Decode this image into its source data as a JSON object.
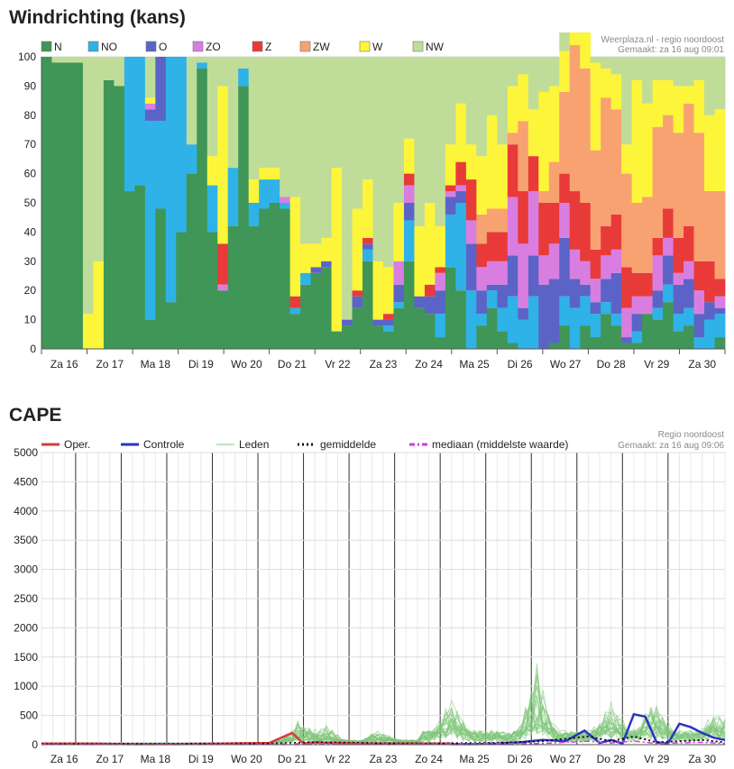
{
  "wind": {
    "title": "Windrichting (kans)",
    "source": "Weerplaza.nl - regio noordoost",
    "made": "Gemaakt: za 16 aug 09:01"
  },
  "cape": {
    "title": "CAPE",
    "source": "Regio noordoost",
    "made": "Gemaakt: za 16 aug 09:06"
  },
  "chart_data": [
    {
      "type": "bar",
      "stacked": true,
      "title": "Windrichting (kans)",
      "ylim": [
        0,
        100
      ],
      "yticks": [
        0,
        10,
        20,
        30,
        40,
        50,
        60,
        70,
        80,
        90,
        100
      ],
      "grid": true,
      "legend_position": "top-left",
      "day_labels": [
        "Za 16",
        "Zo 17",
        "Ma 18",
        "Di 19",
        "Wo 20",
        "Do 21",
        "Vr 22",
        "Za 23",
        "Zo 24",
        "Ma 25",
        "Di 26",
        "Wo 27",
        "Do 28",
        "Vr 29",
        "Za 30"
      ],
      "series_order": [
        "N",
        "NO",
        "O",
        "ZO",
        "Z",
        "ZW",
        "W",
        "NW"
      ],
      "colors": {
        "N": "#3f9656",
        "NO": "#2eb2e8",
        "O": "#5b64c6",
        "ZO": "#d97ee1",
        "Z": "#e93a3a",
        "ZW": "#f8a271",
        "W": "#fcf53a",
        "NW": "#c0dc99"
      },
      "bars": [
        [
          100,
          0,
          0,
          0,
          0,
          0,
          0,
          0
        ],
        [
          98,
          0,
          0,
          0,
          0,
          0,
          0,
          2
        ],
        [
          98,
          0,
          0,
          0,
          0,
          0,
          0,
          2
        ],
        [
          98,
          0,
          0,
          0,
          0,
          0,
          0,
          2
        ],
        [
          0,
          0,
          0,
          0,
          0,
          0,
          12,
          88
        ],
        [
          0,
          0,
          0,
          0,
          0,
          0,
          30,
          70
        ],
        [
          92,
          0,
          0,
          0,
          0,
          0,
          0,
          8
        ],
        [
          90,
          0,
          0,
          0,
          0,
          0,
          0,
          10
        ],
        [
          54,
          46,
          0,
          0,
          0,
          0,
          0,
          0
        ],
        [
          56,
          44,
          0,
          0,
          0,
          0,
          0,
          0
        ],
        [
          10,
          68,
          4,
          2,
          0,
          0,
          2,
          14
        ],
        [
          48,
          30,
          22,
          0,
          0,
          0,
          0,
          0
        ],
        [
          16,
          84,
          0,
          0,
          0,
          0,
          0,
          0
        ],
        [
          40,
          60,
          0,
          0,
          0,
          0,
          0,
          0
        ],
        [
          60,
          10,
          0,
          0,
          0,
          0,
          0,
          30
        ],
        [
          96,
          2,
          0,
          0,
          0,
          0,
          0,
          2
        ],
        [
          40,
          16,
          0,
          0,
          0,
          0,
          10,
          34
        ],
        [
          20,
          0,
          0,
          2,
          14,
          0,
          54,
          10
        ],
        [
          42,
          20,
          0,
          0,
          0,
          0,
          0,
          38
        ],
        [
          90,
          6,
          0,
          0,
          0,
          0,
          0,
          4
        ],
        [
          42,
          8,
          0,
          0,
          0,
          0,
          8,
          42
        ],
        [
          48,
          10,
          0,
          0,
          0,
          0,
          4,
          38
        ],
        [
          50,
          8,
          0,
          0,
          0,
          0,
          4,
          38
        ],
        [
          48,
          2,
          0,
          2,
          0,
          0,
          0,
          48
        ],
        [
          12,
          2,
          0,
          0,
          4,
          0,
          34,
          48
        ],
        [
          22,
          4,
          0,
          0,
          0,
          0,
          10,
          64
        ],
        [
          26,
          0,
          2,
          0,
          0,
          0,
          8,
          64
        ],
        [
          28,
          0,
          2,
          0,
          0,
          0,
          8,
          62
        ],
        [
          6,
          0,
          0,
          0,
          0,
          0,
          56,
          38
        ],
        [
          8,
          0,
          2,
          0,
          0,
          0,
          0,
          90
        ],
        [
          14,
          0,
          4,
          0,
          2,
          0,
          28,
          52
        ],
        [
          30,
          4,
          2,
          0,
          2,
          0,
          20,
          42
        ],
        [
          8,
          0,
          2,
          0,
          0,
          0,
          20,
          70
        ],
        [
          6,
          2,
          2,
          0,
          2,
          0,
          16,
          72
        ],
        [
          14,
          2,
          6,
          8,
          0,
          0,
          20,
          50
        ],
        [
          30,
          14,
          6,
          6,
          4,
          0,
          12,
          28
        ],
        [
          14,
          0,
          4,
          0,
          0,
          0,
          24,
          58
        ],
        [
          12,
          0,
          6,
          0,
          4,
          0,
          28,
          50
        ],
        [
          4,
          8,
          8,
          6,
          2,
          0,
          14,
          58
        ],
        [
          28,
          18,
          6,
          2,
          2,
          0,
          14,
          30
        ],
        [
          20,
          30,
          4,
          2,
          8,
          0,
          20,
          16
        ],
        [
          0,
          20,
          16,
          8,
          14,
          0,
          12,
          30
        ],
        [
          8,
          4,
          8,
          8,
          8,
          10,
          20,
          34
        ],
        [
          14,
          6,
          2,
          8,
          10,
          8,
          32,
          20
        ],
        [
          6,
          8,
          8,
          8,
          10,
          8,
          22,
          30
        ],
        [
          2,
          16,
          14,
          20,
          18,
          4,
          16,
          10
        ],
        [
          0,
          10,
          4,
          22,
          18,
          24,
          16,
          6
        ],
        [
          0,
          18,
          14,
          22,
          12,
          0,
          16,
          18
        ],
        [
          0,
          0,
          22,
          10,
          18,
          4,
          34,
          12
        ],
        [
          2,
          0,
          22,
          12,
          14,
          14,
          26,
          10
        ],
        [
          8,
          10,
          20,
          12,
          10,
          28,
          14,
          8
        ],
        [
          0,
          14,
          10,
          10,
          20,
          50,
          12,
          4
        ],
        [
          8,
          10,
          4,
          8,
          20,
          46,
          22,
          2
        ],
        [
          4,
          8,
          4,
          8,
          10,
          34,
          30,
          2
        ],
        [
          12,
          4,
          8,
          8,
          10,
          44,
          10,
          4
        ],
        [
          8,
          4,
          14,
          8,
          12,
          36,
          12,
          6
        ],
        [
          2,
          0,
          2,
          10,
          14,
          32,
          10,
          30
        ],
        [
          2,
          4,
          6,
          6,
          8,
          24,
          42,
          8
        ],
        [
          12,
          0,
          0,
          6,
          8,
          26,
          32,
          16
        ],
        [
          10,
          4,
          6,
          12,
          6,
          38,
          16,
          8
        ],
        [
          16,
          6,
          10,
          6,
          10,
          32,
          12,
          8
        ],
        [
          6,
          6,
          10,
          4,
          12,
          36,
          16,
          10
        ],
        [
          8,
          6,
          10,
          6,
          12,
          42,
          6,
          10
        ],
        [
          0,
          4,
          8,
          8,
          10,
          44,
          18,
          8
        ],
        [
          0,
          10,
          6,
          0,
          14,
          24,
          26,
          20
        ],
        [
          4,
          8,
          2,
          4,
          6,
          30,
          28,
          18
        ]
      ]
    },
    {
      "type": "line",
      "title": "CAPE",
      "ylim": [
        0,
        5000
      ],
      "yticks": [
        0,
        500,
        1000,
        1500,
        2000,
        2500,
        3000,
        3500,
        4000,
        4500,
        5000
      ],
      "grid": true,
      "legend_position": "top",
      "day_labels": [
        "Za 16",
        "Zo 17",
        "Ma 18",
        "Di 19",
        "Wo 20",
        "Do 21",
        "Vr 22",
        "Za 23",
        "Zo 24",
        "Ma 25",
        "Di 26",
        "Wo 27",
        "Do 28",
        "Vr 29",
        "Za 30"
      ],
      "x_unit": "hours since Za 16 00:00",
      "series": [
        {
          "name": "Oper.",
          "color": "#d63b3b",
          "x": [
            0,
            24,
            48,
            72,
            96,
            120,
            132,
            138,
            144,
            156,
            168,
            192,
            216
          ],
          "values": [
            20,
            20,
            10,
            10,
            20,
            30,
            200,
            20,
            40,
            30,
            20,
            20,
            20
          ]
        },
        {
          "name": "Controle",
          "color": "#2a35c2",
          "x": [
            216,
            228,
            240,
            252,
            264,
            276,
            286,
            294,
            300,
            306,
            312,
            318,
            324,
            330,
            336,
            342,
            348,
            354,
            360
          ],
          "values": [
            10,
            10,
            20,
            40,
            80,
            60,
            240,
            30,
            80,
            20,
            520,
            480,
            40,
            20,
            360,
            300,
            200,
            120,
            80
          ]
        },
        {
          "name": "Leden",
          "color": "#7fc77a",
          "x": [],
          "values": [],
          "peaks": [
            {
              "x": 261,
              "y": 1570
            },
            {
              "x": 216,
              "y": 800
            },
            {
              "x": 300,
              "y": 830
            },
            {
              "x": 323,
              "y": 780
            },
            {
              "x": 136,
              "y": 520
            },
            {
              "x": 150,
              "y": 370
            },
            {
              "x": 178,
              "y": 280
            },
            {
              "x": 356,
              "y": 620
            }
          ]
        },
        {
          "name": "gemiddelde",
          "color": "#111111",
          "x": [
            0,
            120,
            144,
            192,
            240,
            264,
            288,
            300,
            312,
            324,
            336,
            348,
            360
          ],
          "values": [
            10,
            20,
            40,
            20,
            30,
            60,
            140,
            60,
            140,
            40,
            60,
            80,
            40
          ]
        },
        {
          "name": "mediaan (middelste waarde)",
          "color": "#d23be0",
          "x": [
            0,
            120,
            144,
            192,
            240,
            264,
            288,
            300,
            312,
            324,
            336,
            348,
            360
          ],
          "values": [
            5,
            10,
            20,
            10,
            20,
            20,
            60,
            30,
            60,
            20,
            30,
            40,
            20
          ]
        }
      ]
    }
  ]
}
